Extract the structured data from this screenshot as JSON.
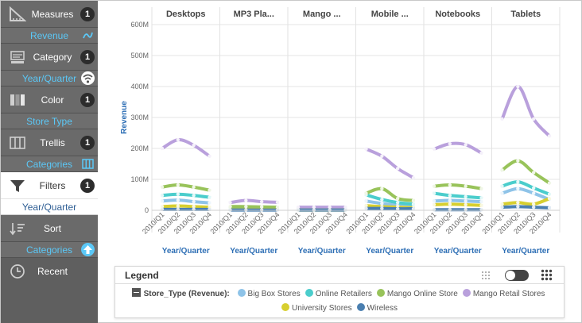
{
  "sidebar": {
    "measures": {
      "label": "Measures",
      "count": "1",
      "value": "Revenue",
      "icon": "ruler-icon",
      "value_icon": "line-chart-icon"
    },
    "category": {
      "label": "Category",
      "count": "1",
      "value": "Year/Quarter",
      "icon": "category-icon",
      "value_icon": "wifi-sort-icon"
    },
    "color": {
      "label": "Color",
      "count": "1",
      "value": "Store Type",
      "icon": "color-columns-icon"
    },
    "trellis": {
      "label": "Trellis",
      "count": "1",
      "value": "Categories",
      "icon": "trellis-columns-icon",
      "value_icon": "columns-icon"
    },
    "filters": {
      "label": "Filters",
      "count": "1",
      "value": "Year/Quarter",
      "icon": "funnel-icon"
    },
    "sort": {
      "label": "Sort",
      "value": "Categories",
      "icon": "sort-icon",
      "value_icon": "up-arrow-icon"
    },
    "recent": {
      "label": "Recent",
      "icon": "clock-icon"
    }
  },
  "legend": {
    "title": "Legend",
    "field": "Store_Type (Revenue):"
  },
  "colors": {
    "accent_blue": "#2e6fb5",
    "value_text": "#5bc8f7"
  },
  "chart_data": {
    "type": "line",
    "trellis_by": "Categories",
    "panels": [
      "Desktops",
      "MP3 Pla...",
      "Mango ...",
      "Mobile ...",
      "Notebooks",
      "Tablets"
    ],
    "categories": [
      "2010/Q1",
      "2010/Q2",
      "2010/Q3",
      "2010/Q4"
    ],
    "xlabel": "Year/Quarter",
    "ylabel": "Revenue",
    "ylim": [
      0,
      600
    ],
    "yticks": [
      0,
      100,
      200,
      300,
      400,
      500,
      600
    ],
    "ytick_labels": [
      "0",
      "100M",
      "200M",
      "300M",
      "400M",
      "500M",
      "600M"
    ],
    "unit": "M",
    "grid": true,
    "series": [
      {
        "name": "Big Box Stores",
        "color": "#8ec3e8",
        "values": [
          [
            30,
            33,
            28,
            24
          ],
          [
            4,
            5,
            4,
            3
          ],
          [
            2,
            2,
            2,
            2
          ],
          [
            30,
            22,
            16,
            12
          ],
          [
            30,
            32,
            30,
            28
          ],
          [
            55,
            70,
            55,
            35
          ]
        ]
      },
      {
        "name": "Online Retailers",
        "color": "#4bcdcc",
        "values": [
          [
            48,
            52,
            48,
            42
          ],
          [
            8,
            8,
            7,
            6
          ],
          [
            3,
            3,
            3,
            3
          ],
          [
            50,
            35,
            25,
            20
          ],
          [
            55,
            48,
            44,
            40
          ],
          [
            78,
            92,
            72,
            52
          ]
        ]
      },
      {
        "name": "Mango Online Store",
        "color": "#98c35a",
        "values": [
          [
            75,
            82,
            75,
            65
          ],
          [
            12,
            12,
            11,
            10
          ],
          [
            5,
            5,
            5,
            4
          ],
          [
            55,
            70,
            38,
            32
          ],
          [
            78,
            82,
            78,
            70
          ],
          [
            130,
            160,
            122,
            88
          ]
        ]
      },
      {
        "name": "Mango Retail Stores",
        "color": "#b9a0dc",
        "values": [
          [
            200,
            228,
            210,
            175
          ],
          [
            25,
            32,
            28,
            26
          ],
          [
            10,
            10,
            10,
            10
          ],
          [
            198,
            175,
            135,
            105
          ],
          [
            198,
            215,
            212,
            185
          ],
          [
            295,
            400,
            295,
            240
          ]
        ]
      },
      {
        "name": "University Stores",
        "color": "#d7cf2f",
        "values": [
          [
            12,
            14,
            12,
            10
          ],
          [
            2,
            2,
            2,
            2
          ],
          [
            1,
            1,
            1,
            1
          ],
          [
            15,
            12,
            10,
            8
          ],
          [
            18,
            20,
            18,
            16
          ],
          [
            20,
            25,
            20,
            38
          ]
        ]
      },
      {
        "name": "Wireless",
        "color": "#4a7fb0",
        "values": [
          [
            3,
            3,
            3,
            3
          ],
          [
            1,
            1,
            1,
            1
          ],
          [
            1,
            1,
            1,
            1
          ],
          [
            6,
            6,
            5,
            5
          ],
          [
            2,
            2,
            2,
            2
          ],
          [
            10,
            12,
            10,
            8
          ]
        ]
      }
    ]
  }
}
